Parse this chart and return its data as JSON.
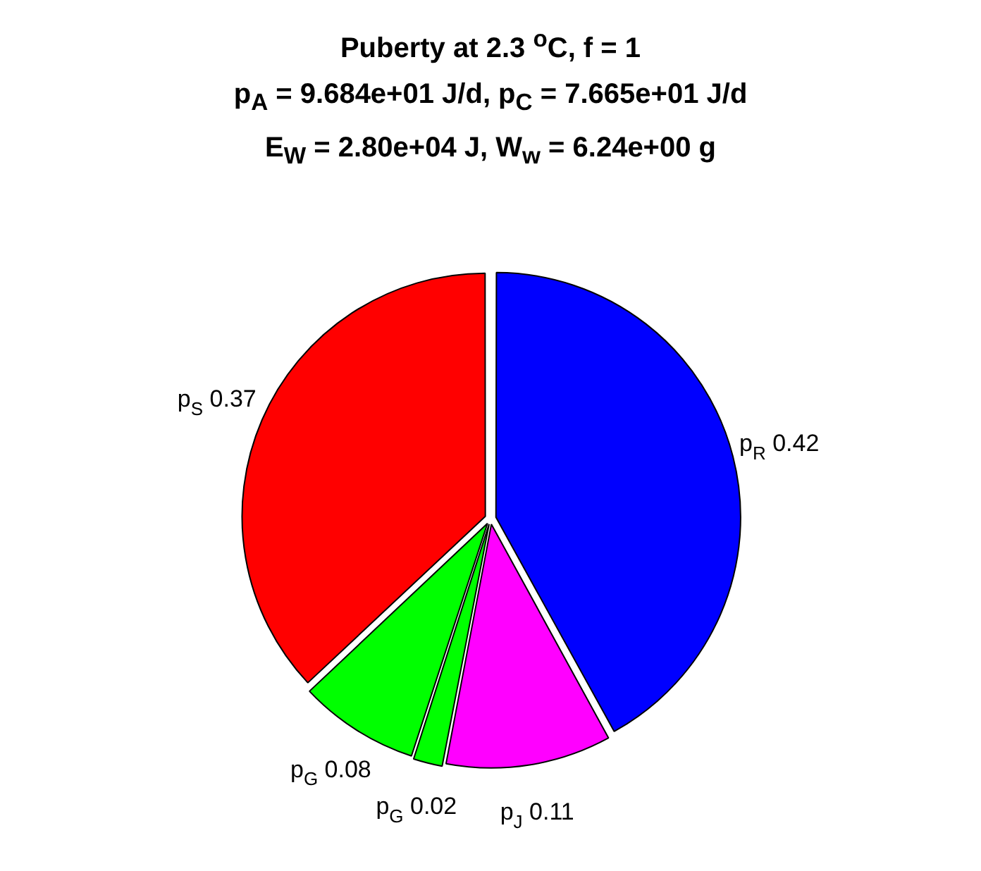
{
  "chart_data": {
    "type": "pie",
    "title": "Puberty at 2.3 $^{o}$C, f = 1\np$_{A}$ = 9.684e+01 J/d,  p$_{C}$ = 7.665e+01 J/d\nE$_{W}$ = 2.80e+04 J, W$_{w}$ = 6.24e+00 g",
    "categories": [
      "p$_{R}$",
      "p$_{J}$",
      "p$_{G}$",
      "p$_{G}$",
      "p$_{S}$"
    ],
    "values": [
      0.42,
      0.11,
      0.02,
      0.08,
      0.37
    ],
    "colors": [
      "#0000ff",
      "#ff00ff",
      "#00ff00",
      "#00ff00",
      "#ff0000"
    ],
    "data_labels": true,
    "legend": false
  }
}
